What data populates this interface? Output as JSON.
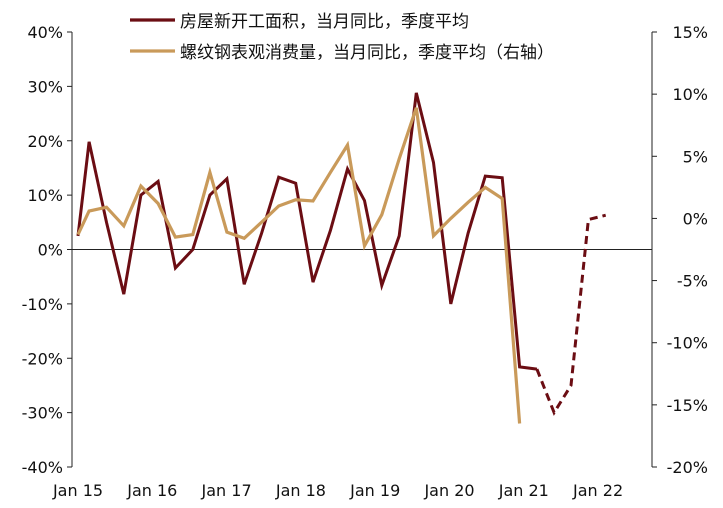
{
  "chart_data": {
    "type": "line",
    "title": "",
    "x_ticks": [
      "Jan 15",
      "Jan 16",
      "Jan 17",
      "Jan 18",
      "Jan 19",
      "Jan 20",
      "Jan 21",
      "Jan 22"
    ],
    "y_left": {
      "min": -40,
      "max": 40,
      "step": 10,
      "ticks": [
        "40%",
        "30%",
        "20%",
        "10%",
        "0%",
        "-10%",
        "-20%",
        "-30%",
        "-40%"
      ]
    },
    "y_right": {
      "min": -20,
      "max": 15,
      "step": 5,
      "ticks": [
        "15%",
        "10%",
        "5%",
        "0%",
        "-5%",
        "-10%",
        "-15%",
        "-20%"
      ]
    },
    "legend": {
      "position": "top"
    },
    "series": [
      {
        "name": "房屋新开工面积，当月同比，季度平均",
        "axis": "left",
        "color": "#6b0d13",
        "x": [
          "2015-01",
          "2015-03",
          "2015-06",
          "2015-09",
          "2015-12",
          "2016-03",
          "2016-06",
          "2016-09",
          "2016-12",
          "2017-03",
          "2017-06",
          "2017-09",
          "2017-12",
          "2018-03",
          "2018-06",
          "2018-09",
          "2018-12",
          "2019-03",
          "2019-06",
          "2019-09",
          "2019-12",
          "2020-03",
          "2020-06",
          "2020-09",
          "2020-12",
          "2021-03",
          "2021-06",
          "2021-09"
        ],
        "values": [
          2.5,
          19.8,
          5,
          -8.2,
          10,
          12.5,
          -3.4,
          0,
          10,
          13,
          -6.4,
          3,
          13.3,
          12.2,
          -6,
          3.5,
          14.8,
          9,
          -6.6,
          2.5,
          28.8,
          16,
          -10,
          3,
          13.5,
          13.2,
          -21.6,
          -22
        ]
      },
      {
        "name": "",
        "axis": "left",
        "style": "dashed",
        "color": "#6b0d13",
        "x": [
          "2021-09",
          "2021-12",
          "2022-03",
          "2022-06",
          "2022-09"
        ],
        "values": [
          -22,
          -30,
          -25,
          5.5,
          6.3
        ]
      },
      {
        "name": "螺纹钢表观消费量，当月同比，季度平均（右轴）",
        "axis": "right",
        "color": "#c99a5a",
        "x": [
          "2015-01",
          "2015-03",
          "2015-06",
          "2015-09",
          "2015-12",
          "2016-03",
          "2016-06",
          "2016-09",
          "2016-12",
          "2017-03",
          "2017-06",
          "2017-09",
          "2017-12",
          "2018-03",
          "2018-06",
          "2018-09",
          "2018-12",
          "2019-03",
          "2019-06",
          "2019-09",
          "2019-12",
          "2020-03",
          "2020-06",
          "2020-09",
          "2020-12",
          "2021-03",
          "2021-06"
        ],
        "values": [
          -1.3,
          0.6,
          0.9,
          -0.6,
          2.6,
          1.2,
          -1.5,
          -1.3,
          3.7,
          -1.1,
          -1.6,
          -0.3,
          1,
          1.5,
          1.4,
          3.7,
          5.9,
          -2.2,
          0.3,
          4.8,
          8.9,
          -1.4,
          0,
          1.3,
          2.5,
          1.6,
          -16.5
        ]
      }
    ]
  }
}
